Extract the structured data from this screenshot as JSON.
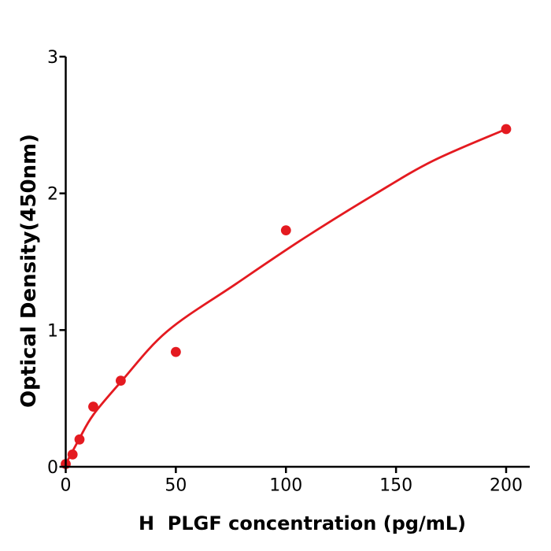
{
  "page": {
    "background": "#ffffff"
  },
  "chart_data": {
    "type": "scatter",
    "title": "",
    "xlabel": "H  PLGF concentration (pg/mL)",
    "ylabel": "Optical Density(450nm)",
    "x_tick_values": [
      0,
      50,
      100,
      150,
      200
    ],
    "x_tick_labels": [
      "0",
      "50",
      "100",
      "150",
      "200"
    ],
    "y_tick_values": [
      0,
      1,
      2,
      3
    ],
    "y_tick_labels": [
      "0",
      "1",
      "2",
      "3"
    ],
    "xlim": [
      0,
      211
    ],
    "ylim": [
      0,
      3
    ],
    "grid": false,
    "legend_position": "none",
    "series": [
      {
        "name": "standard-points",
        "type": "scatter",
        "x": [
          0,
          3.125,
          6.25,
          12.5,
          25,
          50,
          100,
          200
        ],
        "y": [
          0.02,
          0.09,
          0.2,
          0.44,
          0.63,
          0.84,
          1.73,
          2.47
        ],
        "color": "#e41a20"
      },
      {
        "name": "fit-curve",
        "type": "line",
        "x": [
          0,
          6,
          12.5,
          25,
          46,
          77.5,
          108,
          140,
          167,
          200
        ],
        "y": [
          0.02,
          0.2,
          0.38,
          0.62,
          0.99,
          1.34,
          1.67,
          1.99,
          2.24,
          2.47
        ],
        "color": "#e41a20"
      }
    ],
    "colors": {
      "series": "#e41a20",
      "axis": "#000000",
      "background": "#ffffff"
    }
  }
}
